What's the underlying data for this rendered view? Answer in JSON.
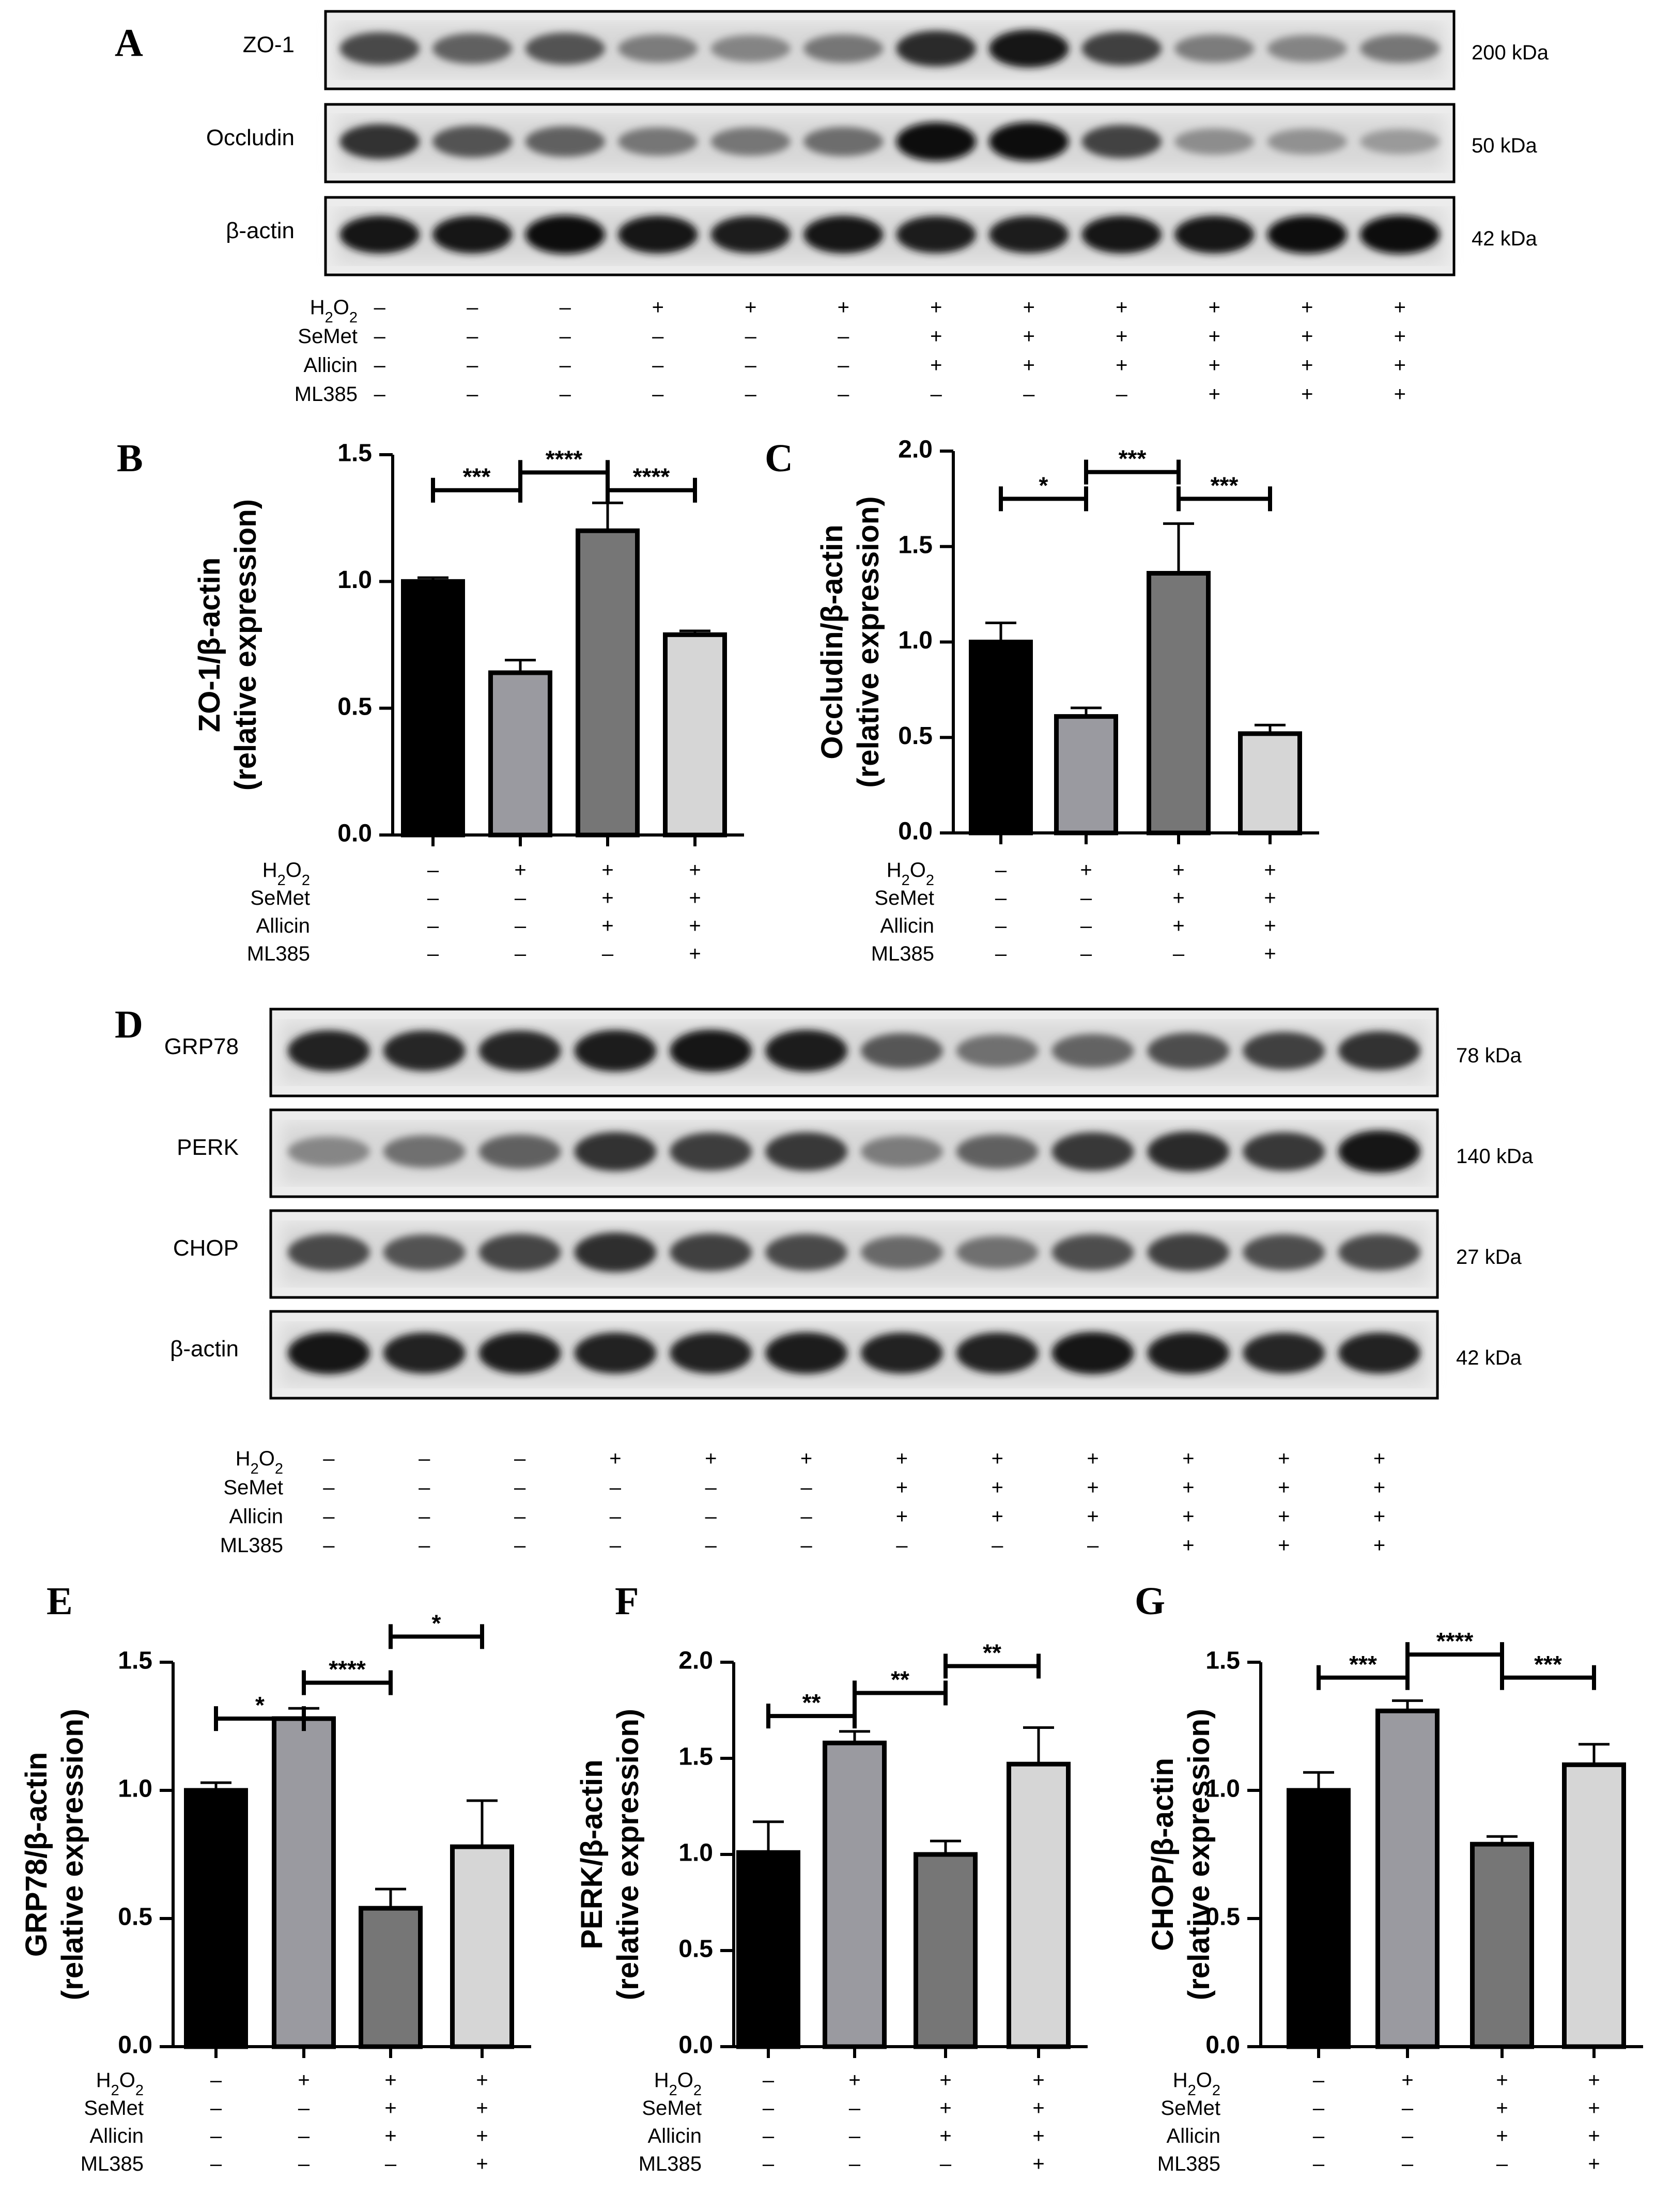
{
  "panel_letters": [
    "A",
    "B",
    "C",
    "D",
    "E",
    "F",
    "G"
  ],
  "treatment_labels": [
    "H₂O₂",
    "SeMet",
    "Allicin",
    "ML385"
  ],
  "blot_A": {
    "letter": "A",
    "proteins": [
      "ZO-1",
      "Occludin",
      "β-actin"
    ],
    "sizes": [
      "200 kDa",
      "50 kDa",
      "42 kDa"
    ],
    "treatments": [
      [
        "–",
        "–",
        "–",
        "+",
        "+",
        "+",
        "+",
        "+",
        "+",
        "+",
        "+",
        "+"
      ],
      [
        "–",
        "–",
        "–",
        "–",
        "–",
        "–",
        "+",
        "+",
        "+",
        "+",
        "+",
        "+"
      ],
      [
        "–",
        "–",
        "–",
        "–",
        "–",
        "–",
        "+",
        "+",
        "+",
        "+",
        "+",
        "+"
      ],
      [
        "–",
        "–",
        "–",
        "–",
        "–",
        "–",
        "–",
        "–",
        "–",
        "+",
        "+",
        "+"
      ]
    ],
    "intensity": [
      [
        0.72,
        0.62,
        0.68,
        0.5,
        0.46,
        0.52,
        0.86,
        0.95,
        0.76,
        0.5,
        0.46,
        0.52
      ],
      [
        0.82,
        0.68,
        0.62,
        0.52,
        0.52,
        0.56,
        1.0,
        1.0,
        0.75,
        0.42,
        0.4,
        0.36
      ],
      [
        0.95,
        0.95,
        1.0,
        0.95,
        0.93,
        0.95,
        0.93,
        0.93,
        0.95,
        0.95,
        0.97,
        1.0
      ]
    ]
  },
  "blot_D": {
    "letter": "D",
    "proteins": [
      "GRP78",
      "PERK",
      "CHOP",
      "β-actin"
    ],
    "sizes": [
      "78 kDa",
      "140 kDa",
      "27 kDa",
      "42 kDa"
    ],
    "treatments": [
      [
        "–",
        "–",
        "–",
        "+",
        "+",
        "+",
        "+",
        "+",
        "+",
        "+",
        "+",
        "+"
      ],
      [
        "–",
        "–",
        "–",
        "–",
        "–",
        "–",
        "+",
        "+",
        "+",
        "+",
        "+",
        "+"
      ],
      [
        "–",
        "–",
        "–",
        "–",
        "–",
        "–",
        "+",
        "+",
        "+",
        "+",
        "+",
        "+"
      ],
      [
        "–",
        "–",
        "–",
        "–",
        "–",
        "–",
        "–",
        "–",
        "–",
        "+",
        "+",
        "+"
      ]
    ],
    "intensity": [
      [
        0.9,
        0.88,
        0.88,
        0.92,
        0.95,
        0.93,
        0.66,
        0.55,
        0.6,
        0.7,
        0.76,
        0.82
      ],
      [
        0.45,
        0.55,
        0.62,
        0.82,
        0.78,
        0.8,
        0.5,
        0.62,
        0.8,
        0.86,
        0.8,
        0.95
      ],
      [
        0.72,
        0.68,
        0.74,
        0.84,
        0.76,
        0.72,
        0.58,
        0.55,
        0.7,
        0.76,
        0.7,
        0.72
      ],
      [
        0.95,
        0.9,
        0.92,
        0.9,
        0.9,
        0.92,
        0.9,
        0.9,
        0.95,
        0.92,
        0.88,
        0.9
      ]
    ]
  },
  "chart_data": [
    {
      "type": "bar",
      "panel": "B",
      "ylabel": "ZO-1/β-actin",
      "ylabel2": "(relative expression)",
      "ylim": [
        0,
        1.5
      ],
      "yticks": [
        "0.0",
        "0.5",
        "1.0",
        "1.5"
      ],
      "values": [
        1.0,
        0.64,
        1.2,
        0.79
      ],
      "errors": [
        0.015,
        0.05,
        0.11,
        0.015
      ],
      "colors": [
        "#000000",
        "#9a9aa0",
        "#767676",
        "#d6d6d6"
      ],
      "treatments": [
        [
          "–",
          "+",
          "+",
          "+"
        ],
        [
          "–",
          "–",
          "+",
          "+"
        ],
        [
          "–",
          "–",
          "+",
          "+"
        ],
        [
          "–",
          "–",
          "–",
          "+"
        ]
      ],
      "significance": [
        {
          "from": 0,
          "to": 1,
          "y": 1.36,
          "label": "***"
        },
        {
          "from": 1,
          "to": 2,
          "y": 1.43,
          "label": "****"
        },
        {
          "from": 2,
          "to": 3,
          "y": 1.36,
          "label": "****"
        }
      ]
    },
    {
      "type": "bar",
      "panel": "C",
      "ylabel": "Occludin/β-actin",
      "ylabel2": "(relative expression)",
      "ylim": [
        0,
        2.0
      ],
      "yticks": [
        "0.0",
        "0.5",
        "1.0",
        "1.5",
        "2.0"
      ],
      "values": [
        1.0,
        0.61,
        1.36,
        0.52
      ],
      "errors": [
        0.1,
        0.045,
        0.26,
        0.045
      ],
      "colors": [
        "#000000",
        "#9a9aa0",
        "#767676",
        "#d6d6d6"
      ],
      "treatments": [
        [
          "–",
          "+",
          "+",
          "+"
        ],
        [
          "–",
          "–",
          "+",
          "+"
        ],
        [
          "–",
          "–",
          "+",
          "+"
        ],
        [
          "–",
          "–",
          "–",
          "+"
        ]
      ],
      "significance": [
        {
          "from": 0,
          "to": 1,
          "y": 1.75,
          "label": "*"
        },
        {
          "from": 1,
          "to": 2,
          "y": 1.89,
          "label": "***"
        },
        {
          "from": 2,
          "to": 3,
          "y": 1.75,
          "label": "***"
        }
      ]
    },
    {
      "type": "bar",
      "panel": "E",
      "ylabel": "GRP78/β-actin",
      "ylabel2": "(relative expression)",
      "ylim": [
        0,
        1.5
      ],
      "yticks": [
        "0.0",
        "0.5",
        "1.0",
        "1.5"
      ],
      "values": [
        1.0,
        1.28,
        0.54,
        0.78
      ],
      "errors": [
        0.03,
        0.04,
        0.075,
        0.18
      ],
      "colors": [
        "#000000",
        "#9a9aa0",
        "#767676",
        "#d6d6d6"
      ],
      "treatments": [
        [
          "–",
          "+",
          "+",
          "+"
        ],
        [
          "–",
          "–",
          "+",
          "+"
        ],
        [
          "–",
          "–",
          "+",
          "+"
        ],
        [
          "–",
          "–",
          "–",
          "+"
        ]
      ],
      "significance": [
        {
          "from": 0,
          "to": 1,
          "y": 1.28,
          "label": "*"
        },
        {
          "from": 1,
          "to": 2,
          "y": 1.42,
          "label": "****"
        },
        {
          "from": 2,
          "to": 3,
          "y": 1.6,
          "label": "*"
        }
      ]
    },
    {
      "type": "bar",
      "panel": "F",
      "ylabel": "PERK/β-actin",
      "ylabel2": "(relative expression)",
      "ylim": [
        0,
        2.0
      ],
      "yticks": [
        "0.0",
        "0.5",
        "1.0",
        "1.5",
        "2.0"
      ],
      "values": [
        1.01,
        1.58,
        1.0,
        1.47
      ],
      "errors": [
        0.16,
        0.06,
        0.07,
        0.19
      ],
      "colors": [
        "#000000",
        "#9a9aa0",
        "#767676",
        "#d6d6d6"
      ],
      "treatments": [
        [
          "–",
          "+",
          "+",
          "+"
        ],
        [
          "–",
          "–",
          "+",
          "+"
        ],
        [
          "–",
          "–",
          "+",
          "+"
        ],
        [
          "–",
          "–",
          "–",
          "+"
        ]
      ],
      "significance": [
        {
          "from": 0,
          "to": 1,
          "y": 1.72,
          "label": "**"
        },
        {
          "from": 1,
          "to": 2,
          "y": 1.84,
          "label": "**"
        },
        {
          "from": 2,
          "to": 3,
          "y": 1.98,
          "label": "**"
        }
      ]
    },
    {
      "type": "bar",
      "panel": "G",
      "ylabel": "CHOP/β-actin",
      "ylabel2": "(relative expression)",
      "ylim": [
        0,
        1.5
      ],
      "yticks": [
        "0.0",
        "0.5",
        "1.0",
        "1.5"
      ],
      "values": [
        1.0,
        1.31,
        0.79,
        1.1
      ],
      "errors": [
        0.07,
        0.04,
        0.03,
        0.08
      ],
      "colors": [
        "#000000",
        "#9a9aa0",
        "#767676",
        "#d6d6d6"
      ],
      "treatments": [
        [
          "–",
          "+",
          "+",
          "+"
        ],
        [
          "–",
          "–",
          "+",
          "+"
        ],
        [
          "–",
          "–",
          "+",
          "+"
        ],
        [
          "–",
          "–",
          "–",
          "+"
        ]
      ],
      "significance": [
        {
          "from": 0,
          "to": 1,
          "y": 1.44,
          "label": "***"
        },
        {
          "from": 1,
          "to": 2,
          "y": 1.53,
          "label": "****"
        },
        {
          "from": 2,
          "to": 3,
          "y": 1.44,
          "label": "***"
        }
      ]
    }
  ]
}
